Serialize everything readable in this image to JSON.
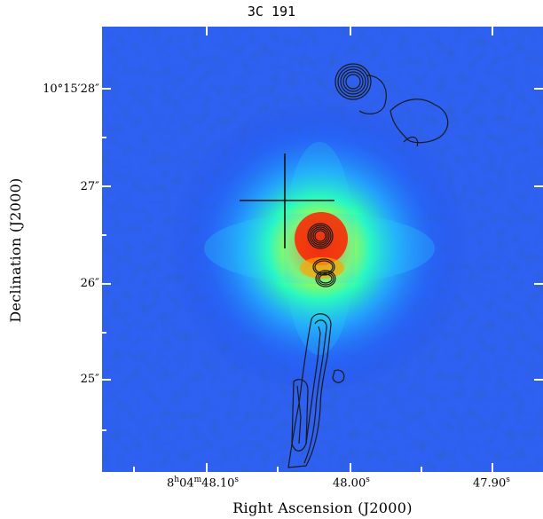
{
  "title": "3C 191",
  "axes": {
    "x_label": "Right Ascension (J2000)",
    "y_label": "Declination (J2000)",
    "x_ticks": [
      {
        "h": "8",
        "m": "04",
        "s": "48.10",
        "full": false
      },
      {
        "s": "48.00",
        "full": true
      },
      {
        "s": "47.90",
        "full": true
      }
    ],
    "x_tick_labels": [
      "8h04m48.10s",
      "48.00s",
      "47.90s"
    ],
    "y_tick_labels": [
      "10°15′28″",
      "27″",
      "26″",
      "25″"
    ]
  },
  "image": {
    "colormap": "blue-to-red",
    "background_color": "#1a3fd6",
    "features": [
      "bright quasar core",
      "contour jet",
      "cross marker"
    ]
  }
}
